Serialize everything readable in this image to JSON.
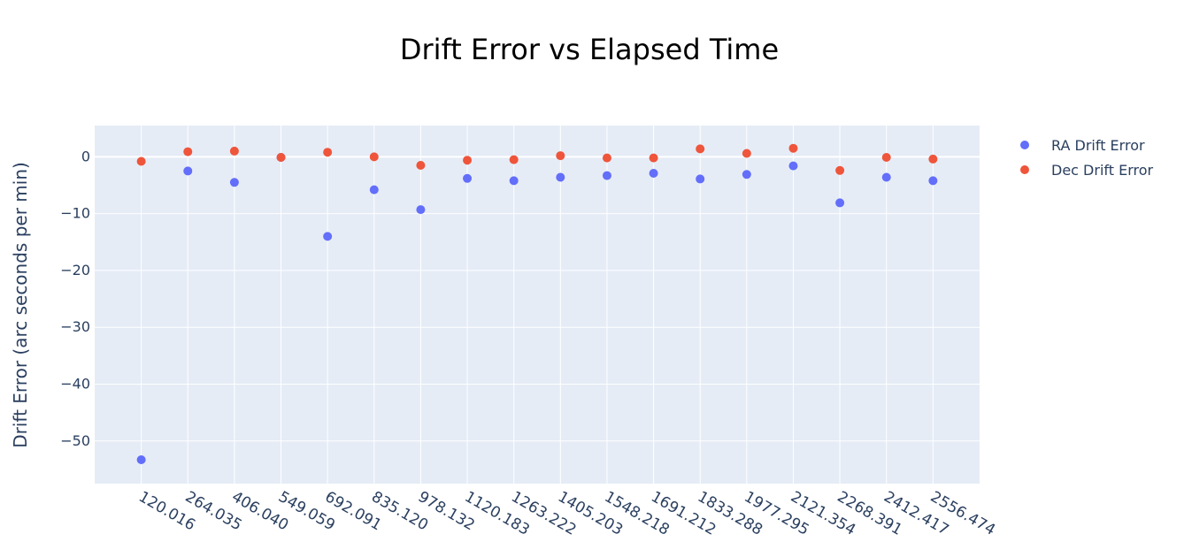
{
  "chart_data": {
    "type": "scatter",
    "title": "Drift Error vs Elapsed Time",
    "xlabel": "",
    "ylabel": "Drift Error (arc seconds per min)",
    "categories": [
      "120.016",
      "264.035",
      "406.040",
      "549.059",
      "692.091",
      "835.120",
      "978.132",
      "1120.183",
      "1263.222",
      "1405.203",
      "1548.218",
      "1691.212",
      "1833.288",
      "1977.295",
      "2121.354",
      "2268.391",
      "2412.417",
      "2556.474"
    ],
    "series": [
      {
        "name": "RA Drift Error",
        "color": "#636efa",
        "values": [
          -53.3,
          -2.5,
          -4.5,
          -0.1,
          -14.0,
          -5.8,
          -9.3,
          -3.8,
          -4.2,
          -3.6,
          -3.3,
          -2.9,
          -3.9,
          -3.1,
          -1.6,
          -8.1,
          -3.6,
          -4.2
        ]
      },
      {
        "name": "Dec Drift Error",
        "color": "#ef553b",
        "values": [
          -0.8,
          0.9,
          1.0,
          -0.1,
          0.8,
          0.0,
          -1.5,
          -0.6,
          -0.5,
          0.2,
          -0.2,
          -0.2,
          1.4,
          0.6,
          1.5,
          -2.4,
          -0.1,
          -0.4
        ]
      }
    ],
    "ylim": [
      -57.5,
      5.5
    ],
    "yticks": [
      0,
      -10,
      -20,
      -30,
      -40,
      -50
    ],
    "ytick_labels": [
      "0",
      "−10",
      "−20",
      "−30",
      "−40",
      "−50"
    ],
    "grid": true,
    "legend_position": "top-right",
    "plot_bgcolor": "#e5ecf6",
    "grid_color": "#ffffff"
  }
}
